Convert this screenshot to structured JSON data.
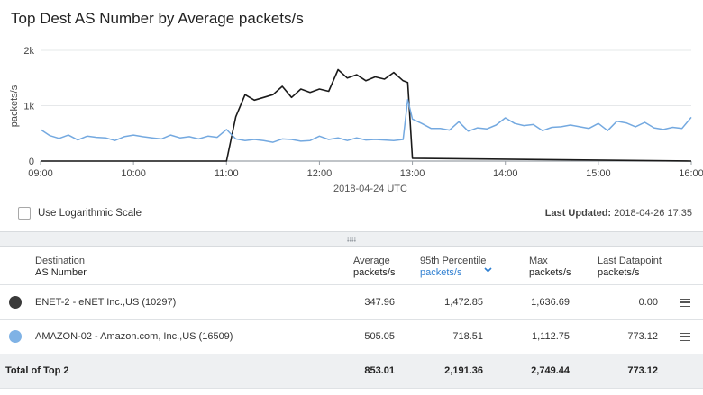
{
  "title": "Top Dest AS Number by Average packets/s",
  "chart_data": {
    "type": "line",
    "ylabel": "packets/s",
    "xlabel": "2018-04-24 UTC",
    "y_ticks": [
      "2k",
      "1k",
      "0"
    ],
    "y_tick_values": [
      2000,
      1000,
      0
    ],
    "ylim": [
      0,
      2000
    ],
    "x_ticks": [
      "09:00",
      "10:00",
      "11:00",
      "12:00",
      "13:00",
      "14:00",
      "15:00",
      "16:00"
    ],
    "x_range_hours": [
      9.0,
      16.0
    ],
    "grid": "horizontal",
    "series": [
      {
        "color": "#1a1a1a",
        "x_hours": [
          9.0,
          11.0,
          11.1,
          11.2,
          11.3,
          11.4,
          11.5,
          11.6,
          11.7,
          11.8,
          11.9,
          12.0,
          12.1,
          12.2,
          12.3,
          12.4,
          12.5,
          12.6,
          12.7,
          12.8,
          12.9,
          12.95,
          13.0,
          16.0
        ],
        "values": [
          0,
          0,
          800,
          1200,
          1100,
          1150,
          1200,
          1350,
          1150,
          1300,
          1240,
          1300,
          1260,
          1650,
          1500,
          1560,
          1450,
          1520,
          1480,
          1600,
          1450,
          1420,
          50,
          0
        ]
      },
      {
        "color": "#74a9e0",
        "x_hours": [
          9.0,
          9.1,
          9.2,
          9.3,
          9.4,
          9.5,
          9.6,
          9.7,
          9.8,
          9.9,
          10.0,
          10.1,
          10.2,
          10.3,
          10.4,
          10.5,
          10.6,
          10.7,
          10.8,
          10.9,
          11.0,
          11.1,
          11.2,
          11.3,
          11.4,
          11.5,
          11.6,
          11.7,
          11.8,
          11.9,
          12.0,
          12.1,
          12.2,
          12.3,
          12.4,
          12.5,
          12.6,
          12.7,
          12.8,
          12.9,
          12.95,
          13.0,
          13.1,
          13.2,
          13.3,
          13.4,
          13.5,
          13.6,
          13.7,
          13.8,
          13.9,
          14.0,
          14.1,
          14.2,
          14.3,
          14.4,
          14.5,
          14.6,
          14.7,
          14.8,
          14.9,
          15.0,
          15.1,
          15.2,
          15.3,
          15.4,
          15.5,
          15.6,
          15.7,
          15.8,
          15.9,
          16.0
        ],
        "values": [
          570,
          460,
          410,
          470,
          380,
          450,
          430,
          420,
          370,
          440,
          470,
          440,
          420,
          400,
          470,
          420,
          440,
          400,
          450,
          430,
          570,
          400,
          370,
          390,
          370,
          340,
          400,
          390,
          360,
          370,
          450,
          390,
          420,
          370,
          420,
          380,
          390,
          380,
          370,
          390,
          1110,
          760,
          680,
          590,
          590,
          560,
          710,
          540,
          600,
          580,
          650,
          780,
          680,
          640,
          660,
          550,
          610,
          620,
          650,
          620,
          590,
          680,
          550,
          720,
          690,
          620,
          700,
          600,
          570,
          610,
          590,
          790
        ]
      }
    ]
  },
  "log_scale": {
    "label": "Use Logarithmic Scale",
    "checked": false
  },
  "last_updated": {
    "label": "Last Updated:",
    "value": "2018-04-26 17:35"
  },
  "table": {
    "headers": {
      "destination": {
        "line1": "Destination",
        "line2": "AS Number"
      },
      "average": {
        "line1": "Average",
        "line2": "packets/s"
      },
      "p95": {
        "line1": "95th Percentile",
        "line2": "packets/s"
      },
      "max": {
        "line1": "Max",
        "line2": "packets/s"
      },
      "last": {
        "line1": "Last Datapoint",
        "line2": "packets/s"
      }
    },
    "rows": [
      {
        "color": "#3a3a3a",
        "name": "ENET-2 - eNET Inc.,US (10297)",
        "average": "347.96",
        "p95": "1,472.85",
        "max": "1,636.69",
        "last": "0.00"
      },
      {
        "color": "#7fb2e5",
        "name": "AMAZON-02 - Amazon.com, Inc.,US (16509)",
        "average": "505.05",
        "p95": "718.51",
        "max": "1,112.75",
        "last": "773.12"
      }
    ],
    "total": {
      "label": "Total of Top 2",
      "average": "853.01",
      "p95": "2,191.36",
      "max": "2,749.44",
      "last": "773.12"
    }
  }
}
